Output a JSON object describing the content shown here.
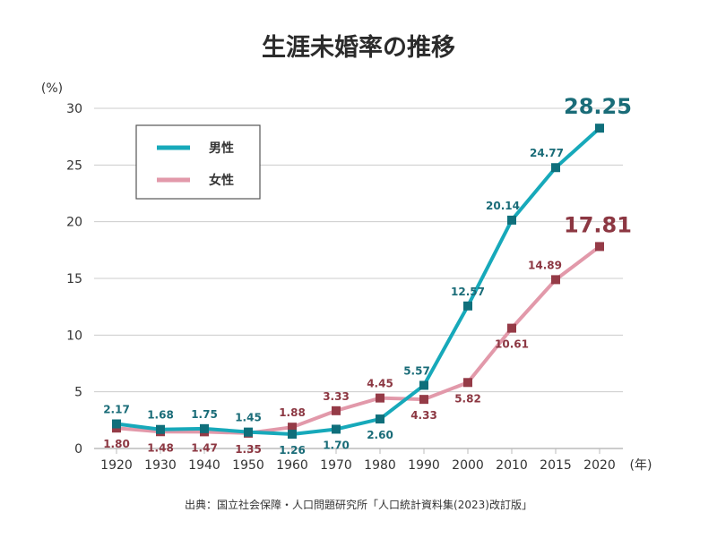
{
  "chart_data": {
    "type": "line",
    "title": "生涯未婚率の推移",
    "ylabel": "(%)",
    "xlabel": "(年)",
    "categories": [
      "1920",
      "1930",
      "1940",
      "1950",
      "1960",
      "1970",
      "1980",
      "1990",
      "2000",
      "2010",
      "2015",
      "2020"
    ],
    "ylim": [
      0,
      30
    ],
    "yticks": [
      "0",
      "5",
      "10",
      "15",
      "20",
      "25",
      "30"
    ],
    "grid": "horizontal",
    "legend_position": "top-left",
    "series": [
      {
        "name": "男性",
        "color": "#17a9ba",
        "marker_color": "#0f6f7b",
        "label_color": "#1a6c78",
        "values": [
          2.17,
          1.68,
          1.75,
          1.45,
          1.26,
          1.7,
          2.6,
          5.57,
          12.57,
          20.14,
          24.77,
          28.25
        ],
        "labels": [
          "2.17",
          "1.68",
          "1.75",
          "1.45",
          "1.26",
          "1.70",
          "2.60",
          "5.57",
          "12.57",
          "20.14",
          "24.77",
          "28.25"
        ]
      },
      {
        "name": "女性",
        "color": "#e299aa",
        "marker_color": "#953b47",
        "label_color": "#8c3742",
        "values": [
          1.8,
          1.48,
          1.47,
          1.35,
          1.88,
          3.33,
          4.45,
          4.33,
          5.82,
          10.61,
          14.89,
          17.81
        ],
        "labels": [
          "1.80",
          "1.48",
          "1.47",
          "1.35",
          "1.88",
          "3.33",
          "4.45",
          "4.33",
          "5.82",
          "10.61",
          "14.89",
          "17.81"
        ]
      }
    ],
    "source": "出典：国立社会保障・人口問題研究所「人口統計資料集(2023)改訂版」"
  }
}
